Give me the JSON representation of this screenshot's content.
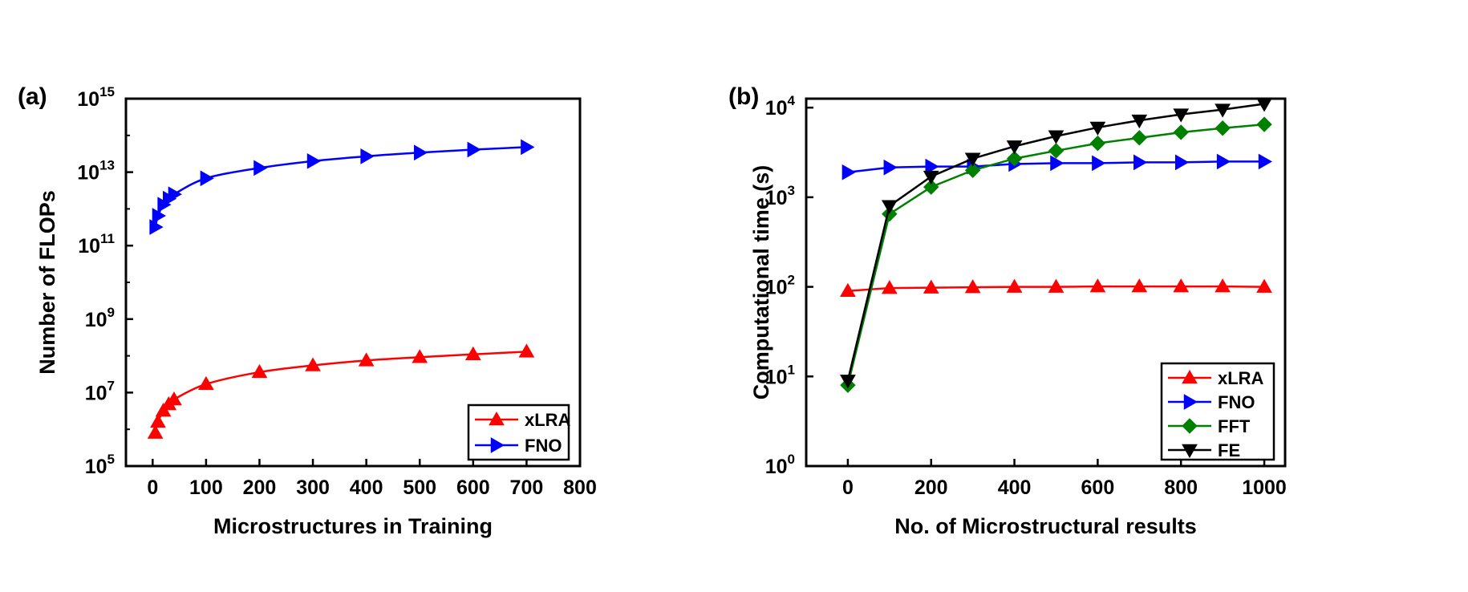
{
  "chart_data": [
    {
      "panel": "(a)",
      "type": "line",
      "scale": "log-y",
      "xlabel": "Microstructures in Training",
      "ylabel": "Number of FLOPs",
      "xlim": [
        -50,
        800
      ],
      "ylim_exp": [
        5,
        15
      ],
      "xticks": [
        0,
        100,
        200,
        300,
        400,
        500,
        600,
        700,
        800
      ],
      "yticks": [
        {
          "base": "10",
          "exp": "5",
          "value": 5
        },
        {
          "base": "10",
          "exp": "7",
          "value": 7
        },
        {
          "base": "10",
          "exp": "9",
          "value": 9
        },
        {
          "base": "10",
          "exp": "11",
          "value": 11
        },
        {
          "base": "10",
          "exp": "13",
          "value": 13
        },
        {
          "base": "10",
          "exp": "15",
          "value": 15
        }
      ],
      "legend_position": "bottom-right",
      "series": [
        {
          "name": "xLRA",
          "color": "#ff0000",
          "marker": "triangle-up",
          "x": [
            5,
            10,
            20,
            30,
            40,
            100,
            200,
            300,
            400,
            500,
            600,
            700
          ],
          "y": [
            800000,
            1600000,
            3200000,
            4800000,
            6500000,
            17000000,
            36000000,
            55000000,
            75000000,
            92000000,
            110000000,
            130000000
          ]
        },
        {
          "name": "FNO",
          "color": "#0000ff",
          "marker": "triangle-right",
          "x": [
            5,
            10,
            20,
            30,
            40,
            100,
            200,
            300,
            400,
            500,
            600,
            700
          ],
          "y": [
            320000000000,
            650000000000,
            1300000000000,
            1900000000000,
            2500000000000,
            6800000000000,
            13000000000000,
            20000000000000,
            27000000000000,
            34000000000000,
            41000000000000,
            48000000000000
          ]
        }
      ]
    },
    {
      "panel": "(b)",
      "type": "line",
      "scale": "log-y",
      "xlabel": "No. of Microstructural results",
      "ylabel": "Computational time (s)",
      "xlim": [
        -100,
        1050
      ],
      "ylim_exp": [
        0,
        4.1
      ],
      "xticks": [
        0,
        200,
        400,
        600,
        800,
        1000
      ],
      "yticks": [
        {
          "base": "10",
          "exp": "0",
          "value": 0
        },
        {
          "base": "10",
          "exp": "1",
          "value": 1
        },
        {
          "base": "10",
          "exp": "2",
          "value": 2
        },
        {
          "base": "10",
          "exp": "3",
          "value": 3
        },
        {
          "base": "10",
          "exp": "4",
          "value": 4
        }
      ],
      "legend_position": "bottom-right",
      "series": [
        {
          "name": "xLRA",
          "color": "#ff0000",
          "marker": "triangle-up",
          "x": [
            0,
            100,
            200,
            300,
            400,
            500,
            600,
            700,
            800,
            900,
            1000
          ],
          "y": [
            90,
            97,
            98,
            99,
            100,
            100,
            101,
            101,
            101,
            101,
            100
          ]
        },
        {
          "name": "FNO",
          "color": "#0000ff",
          "marker": "triangle-right",
          "x": [
            0,
            100,
            200,
            300,
            400,
            500,
            600,
            700,
            800,
            900,
            1000
          ],
          "y": [
            1900,
            2150,
            2200,
            2200,
            2350,
            2400,
            2400,
            2450,
            2450,
            2500,
            2500
          ]
        },
        {
          "name": "FFT",
          "color": "#008000",
          "marker": "diamond",
          "x": [
            0,
            100,
            200,
            300,
            400,
            500,
            600,
            700,
            800,
            900,
            1000
          ],
          "y": [
            8,
            650,
            1300,
            2000,
            2700,
            3300,
            4000,
            4600,
            5300,
            5900,
            6500
          ]
        },
        {
          "name": "FE",
          "color": "#000000",
          "marker": "triangle-down",
          "x": [
            0,
            100,
            200,
            300,
            400,
            500,
            600,
            700,
            800,
            900,
            1000
          ],
          "y": [
            9,
            800,
            1700,
            2700,
            3700,
            4800,
            6000,
            7200,
            8400,
            9500,
            11000
          ]
        }
      ]
    }
  ]
}
